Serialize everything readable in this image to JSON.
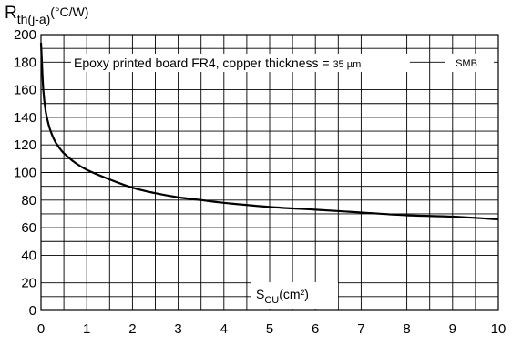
{
  "chart_data": {
    "type": "line",
    "ylabel_main": "R",
    "ylabel_sub": "th(j-a)",
    "ylabel_unit": "(°C/W)",
    "xlabel_main": "S",
    "xlabel_sub": "CU",
    "xlabel_unit": "(cm²)",
    "annotation_text": "Epoxy printed board FR4, copper thickness = ",
    "annotation_value": "35 µm",
    "package_label": "SMB",
    "xlim": [
      0,
      10
    ],
    "ylim": [
      0,
      200
    ],
    "x_ticks": [
      "0",
      "1",
      "2",
      "3",
      "4",
      "5",
      "6",
      "7",
      "8",
      "9",
      "10"
    ],
    "y_ticks": [
      "0",
      "20",
      "40",
      "60",
      "80",
      "100",
      "120",
      "140",
      "160",
      "180",
      "200"
    ],
    "grid": true,
    "series": [
      {
        "color": "#000000",
        "x": [
          0.0,
          0.02,
          0.05,
          0.1,
          0.15,
          0.2,
          0.3,
          0.4,
          0.5,
          0.75,
          1.0,
          1.5,
          2.0,
          2.5,
          3.0,
          3.5,
          4.0,
          5.0,
          6.0,
          7.0,
          8.0,
          9.0,
          10.0
        ],
        "y": [
          194,
          180,
          160,
          145,
          137,
          131,
          123,
          118,
          114,
          107,
          102,
          95,
          89,
          85,
          82,
          80,
          78,
          75,
          73,
          71,
          69,
          68,
          66
        ]
      }
    ]
  }
}
